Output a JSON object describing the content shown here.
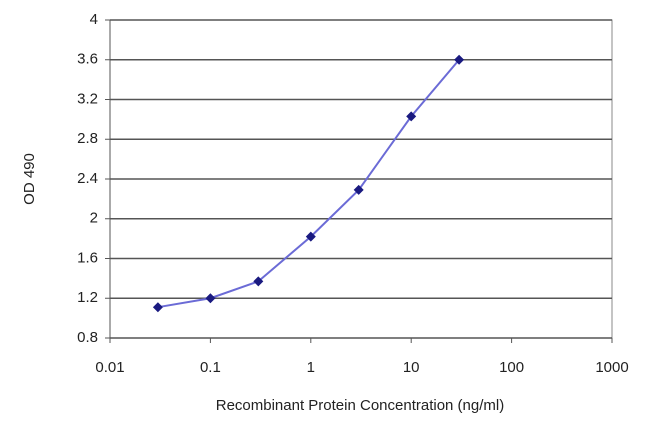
{
  "chart_data": {
    "type": "line",
    "x_label": "Recombinant Protein Concentration (ng/ml)",
    "y_label": "OD 490",
    "x": [
      0.03,
      0.1,
      0.3,
      1,
      3,
      10,
      30
    ],
    "series": [
      {
        "name": "OD 490",
        "color": "#6b6bd6",
        "marker_color": "#1a1a80",
        "values": [
          1.11,
          1.2,
          1.37,
          1.82,
          2.29,
          3.03,
          3.6
        ]
      }
    ],
    "xlim": [
      0.01,
      1000
    ],
    "xticks": [
      0.01,
      0.1,
      1,
      10,
      100,
      1000
    ],
    "xscale": "log",
    "ylim": [
      0.8,
      4
    ],
    "yticks": [
      0.8,
      1.2,
      1.6,
      2,
      2.4,
      2.8,
      3.2,
      3.6,
      4
    ],
    "grid": true
  }
}
